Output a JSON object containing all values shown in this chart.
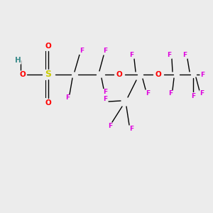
{
  "bg_color": "#ececec",
  "atom_colors": {
    "H": "#3a8a8a",
    "O": "#ff0000",
    "S": "#cccc00",
    "F": "#dd00dd",
    "C": "#000000"
  },
  "bond_color": "#000000",
  "bond_width": 1.0,
  "font_size_atom": 7.5,
  "font_size_small": 6.5
}
